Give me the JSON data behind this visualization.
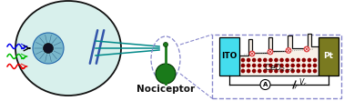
{
  "title": "Nociceptor",
  "bg_color": "#ffffff",
  "eye_fill": "#d8f0ec",
  "eye_edge": "#111111",
  "iris_fill": "#7ab8cc",
  "iris_edge": "#2266aa",
  "pupil_fill": "#111122",
  "wave_colors": [
    "#ee0000",
    "#00bb00",
    "#0000ee"
  ],
  "highlight_arc_color": "#3355aa",
  "axon_color": "#008888",
  "neuron_fill": "#1a7a1a",
  "neuron_edge": "#003300",
  "dashed_color": "#8888cc",
  "ito_fill": "#44ddee",
  "pt_fill": "#7a7a20",
  "dot_fill": "#8b0000",
  "open_dot_edge": "#dd4444",
  "circuit_color": "#000000",
  "step_fill": "#f8f0e8"
}
